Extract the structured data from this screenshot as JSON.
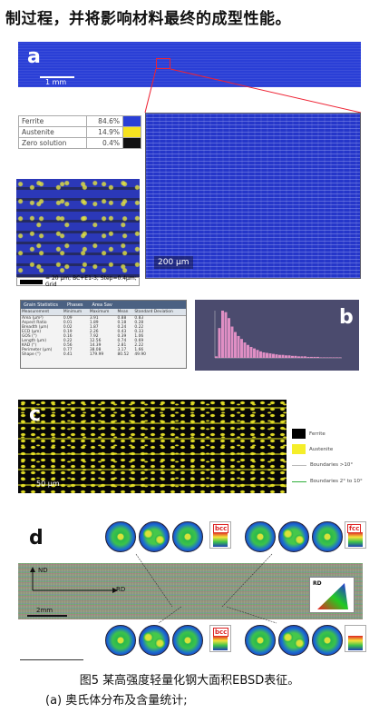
{
  "header_text": "制过程，并将影响材料最终的成型性能。",
  "panel_a": {
    "label": "a",
    "strip_scale": "1 mm",
    "legend": [
      {
        "name": "Ferrite",
        "value": "84.6%",
        "color": "#2a3fd6"
      },
      {
        "name": "Austenite",
        "value": "14.9%",
        "color": "#f5e21f"
      },
      {
        "name": "Zero solution",
        "value": "0.4%",
        "color": "#111111"
      }
    ],
    "small_scale_text": "= 20 µm; BC+E1-3; Step=0.4µm; Grid",
    "big_scale": "200 µm"
  },
  "panel_b": {
    "label": "b",
    "tabs": [
      "Grain Statistics",
      "Phases",
      "Area Sav"
    ],
    "headers": [
      "Measurement",
      "Minimum",
      "Maximum",
      "Mean",
      "Standard Deviation"
    ],
    "rows": [
      [
        "Area (µm²)",
        "0.09",
        "3.91",
        "0.88",
        "0.83"
      ],
      [
        "Aspect Ratio",
        "0.01",
        "1.89",
        "0.18",
        "0.28"
      ],
      [
        "Breadth (µm)",
        "0.02",
        "1.87",
        "0.24",
        "0.22"
      ],
      [
        "ECD (µm)",
        "0.19",
        "2.26",
        "0.43",
        "0.33"
      ],
      [
        "GOS (°)",
        "0.16",
        "7.92",
        "0.39",
        "1.06"
      ],
      [
        "Length (µm)",
        "0.22",
        "12.56",
        "0.74",
        "0.69"
      ],
      [
        "KAD (°)",
        "0.56",
        "14.39",
        "2.81",
        "2.22"
      ],
      [
        "Perimeter (µm)",
        "0.77",
        "38.08",
        "3.17",
        "1.66"
      ],
      [
        "Shape (°)",
        "0.41",
        "179.99",
        "80.52",
        "49.90"
      ]
    ],
    "histogram_counts": [
      3,
      60,
      95,
      92,
      80,
      63,
      52,
      44,
      38,
      31,
      26,
      22,
      19,
      16,
      13,
      11,
      10,
      9,
      8,
      7,
      6,
      6,
      5,
      5,
      4,
      4,
      3,
      3,
      3,
      2,
      2,
      2,
      2,
      1,
      1,
      1,
      1,
      1,
      1,
      1
    ],
    "histogram_color": "#e08fc4"
  },
  "panel_c": {
    "label": "c",
    "scale": "50 µm",
    "legend": [
      {
        "kind": "box",
        "name": "Ferrite",
        "color": "#000000"
      },
      {
        "kind": "box",
        "name": "Austenite",
        "color": "#f5ee2a"
      },
      {
        "kind": "line",
        "name": "Boundaries >10°",
        "color": "#bbbbbb"
      },
      {
        "kind": "line",
        "name": "Boundaries 2° to 10°",
        "color": "#2fae3a"
      }
    ]
  },
  "panel_d": {
    "label": "d",
    "phase_top_left": "bcc",
    "phase_top_right": "fcc",
    "phase_bottom": "bcc",
    "axis_nd": "ND",
    "axis_rd": "RD",
    "triangle_label": "RD",
    "scale": "2mm"
  },
  "caption_line1": "图5 某高强度轻量化钢大面积EBSD表征。",
  "caption_line2": "(a) 奥氏体分布及含量统计;"
}
